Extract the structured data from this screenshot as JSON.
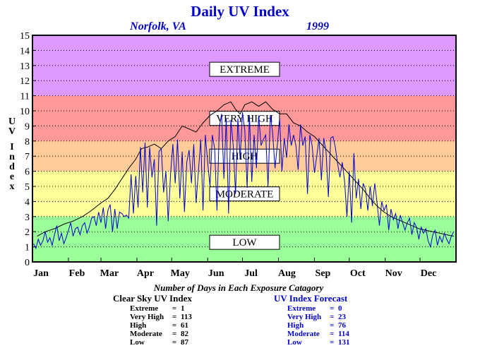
{
  "chart_data": {
    "type": "line",
    "title": "Daily UV Index",
    "location": "Norfolk, VA",
    "year": "1999",
    "ylabel": "UV Index",
    "ylim": [
      0,
      15
    ],
    "xlim": [
      1,
      366
    ],
    "y_ticks": [
      "0",
      "1",
      "2",
      "3",
      "4",
      "5",
      "6",
      "7",
      "8",
      "9",
      "10",
      "11",
      "12",
      "13",
      "14",
      "15"
    ],
    "x_ticks": [
      {
        "label": "Jan",
        "day": 1
      },
      {
        "label": "Feb",
        "day": 32
      },
      {
        "label": "Mar",
        "day": 60
      },
      {
        "label": "Apr",
        "day": 91
      },
      {
        "label": "May",
        "day": 121
      },
      {
        "label": "Jun",
        "day": 152
      },
      {
        "label": "Jul",
        "day": 182
      },
      {
        "label": "Aug",
        "day": 213
      },
      {
        "label": "Sep",
        "day": 244
      },
      {
        "label": "Oct",
        "day": 274
      },
      {
        "label": "Nov",
        "day": 305
      },
      {
        "label": "Dec",
        "day": 335
      }
    ],
    "grid": true,
    "bands": [
      {
        "label": "LOW",
        "from": 0,
        "to": 3,
        "color": "#99ff99"
      },
      {
        "label": "MODERATE",
        "from": 3,
        "to": 6,
        "color": "#ffff99"
      },
      {
        "label": "HIGH",
        "from": 6,
        "to": 8,
        "color": "#ffcc99"
      },
      {
        "label": "VERY HIGH",
        "from": 8,
        "to": 11,
        "color": "#ff9999"
      },
      {
        "label": "EXTREME",
        "from": 11,
        "to": 15,
        "color": "#dd99ff"
      }
    ],
    "series": [
      {
        "name": "Clear Sky UV Index",
        "color": "#000000",
        "x": [
          5,
          12,
          20,
          28,
          36,
          44,
          50,
          55,
          60,
          66,
          72,
          78,
          84,
          90,
          95,
          100,
          106,
          112,
          118,
          124,
          130,
          136,
          142,
          148,
          154,
          160,
          166,
          172,
          176,
          180,
          184,
          190,
          196,
          202,
          208,
          214,
          220,
          226,
          232,
          238,
          244,
          250,
          256,
          262,
          268,
          274,
          280,
          286,
          292,
          298,
          304,
          310,
          316,
          322,
          328,
          334,
          340,
          346,
          352,
          358,
          364
        ],
        "y": [
          1.7,
          2.0,
          2.2,
          2.5,
          2.7,
          3.0,
          3.3,
          3.6,
          3.9,
          4.2,
          4.8,
          5.5,
          6.2,
          6.8,
          7.5,
          7.6,
          7.8,
          7.5,
          8.0,
          8.3,
          9.0,
          8.8,
          8.6,
          9.2,
          9.7,
          10.0,
          10.4,
          10.6,
          10.1,
          9.8,
          10.4,
          10.6,
          10.3,
          10.6,
          10.1,
          9.8,
          9.8,
          9.2,
          9.0,
          8.6,
          8.3,
          7.8,
          7.3,
          6.8,
          6.3,
          5.8,
          5.3,
          4.8,
          4.2,
          3.7,
          3.3,
          3.0,
          2.8,
          2.6,
          2.4,
          2.2,
          2.1,
          2.0,
          1.9,
          1.8,
          1.7
        ]
      },
      {
        "name": "UV Index Forecast",
        "color": "#0000cc",
        "x": [
          2,
          4,
          6,
          8,
          10,
          12,
          14,
          16,
          18,
          20,
          22,
          24,
          26,
          28,
          30,
          32,
          34,
          36,
          38,
          40,
          42,
          44,
          46,
          48,
          50,
          52,
          54,
          56,
          58,
          60,
          62,
          64,
          66,
          68,
          70,
          72,
          74,
          76,
          78,
          80,
          82,
          84,
          86,
          88,
          90,
          92,
          94,
          96,
          98,
          100,
          102,
          104,
          106,
          108,
          110,
          112,
          114,
          116,
          118,
          120,
          122,
          124,
          126,
          128,
          130,
          132,
          134,
          136,
          138,
          140,
          142,
          144,
          146,
          148,
          150,
          152,
          154,
          156,
          158,
          160,
          162,
          164,
          166,
          168,
          170,
          172,
          174,
          176,
          178,
          180,
          182,
          184,
          186,
          188,
          190,
          192,
          194,
          196,
          198,
          200,
          202,
          204,
          206,
          208,
          210,
          212,
          214,
          216,
          218,
          220,
          222,
          224,
          226,
          228,
          230,
          232,
          234,
          236,
          238,
          240,
          242,
          244,
          246,
          248,
          250,
          252,
          254,
          256,
          258,
          260,
          262,
          264,
          266,
          268,
          270,
          272,
          274,
          276,
          278,
          280,
          282,
          284,
          286,
          288,
          290,
          292,
          294,
          296,
          298,
          300,
          302,
          304,
          306,
          308,
          310,
          312,
          314,
          316,
          318,
          320,
          322,
          324,
          326,
          328,
          330,
          332,
          334,
          336,
          338,
          340,
          342,
          344,
          346,
          348,
          350,
          352,
          354,
          356,
          358,
          360,
          362,
          364
        ],
        "y": [
          1.2,
          0.9,
          1.5,
          1.1,
          1.4,
          2.0,
          1.3,
          1.6,
          1.1,
          1.8,
          2.4,
          1.4,
          1.9,
          1.2,
          1.6,
          2.1,
          2.6,
          1.7,
          2.2,
          2.3,
          1.8,
          2.4,
          2.6,
          1.9,
          2.3,
          2.9,
          3.0,
          2.4,
          3.3,
          2.6,
          3.6,
          2.2,
          3.4,
          3.8,
          2.0,
          3.5,
          2.2,
          3.3,
          3.2,
          3.0,
          3.1,
          2.9,
          5.8,
          3.2,
          5.7,
          3.6,
          7.6,
          4.6,
          7.9,
          3.6,
          7.6,
          5.6,
          6.8,
          2.4,
          7.3,
          7.5,
          4.6,
          6.0,
          2.7,
          5.8,
          7.8,
          5.2,
          8.1,
          4.2,
          7.3,
          3.3,
          6.6,
          7.4,
          5.2,
          7.8,
          3.9,
          6.0,
          8.1,
          3.4,
          8.4,
          6.6,
          5.0,
          8.4,
          7.5,
          3.4,
          8.9,
          9.8,
          5.5,
          9.5,
          3.2,
          9.4,
          7.7,
          4.5,
          9.5,
          6.8,
          9.9,
          8.7,
          4.9,
          9.7,
          5.3,
          8.4,
          6.2,
          9.7,
          7.7,
          8.1,
          8.4,
          5.0,
          9.7,
          8.5,
          6.2,
          7.7,
          9.5,
          6.0,
          8.2,
          6.9,
          9.1,
          7.7,
          8.4,
          7.7,
          6.1,
          9.1,
          7.7,
          8.3,
          4.5,
          8.4,
          7.7,
          5.9,
          7.0,
          8.2,
          5.4,
          8.2,
          7.3,
          4.3,
          8.2,
          8.3,
          7.6,
          6.5,
          5.6,
          6.6,
          5.3,
          3.0,
          6.0,
          2.6,
          7.2,
          4.2,
          5.5,
          3.5,
          5.2,
          4.8,
          3.4,
          5.0,
          3.7,
          5.2,
          3.9,
          2.4,
          4.0,
          3.4,
          3.8,
          2.1,
          3.5,
          2.8,
          3.2,
          2.2,
          3.1,
          2.6,
          2.1,
          2.6,
          2.9,
          1.8,
          2.6,
          2.3,
          1.5,
          2.3,
          1.9,
          2.2,
          1.4,
          1.0,
          1.8,
          2.1,
          1.1,
          1.7,
          1.3,
          1.9,
          1.5,
          1.2,
          1.7,
          2.0
        ]
      }
    ]
  },
  "summary_title": "Number of Days in Each Exposure Catagory",
  "clear_sky": {
    "title": "Clear Sky UV Index",
    "rows": [
      {
        "label": "Extreme",
        "value": "1"
      },
      {
        "label": "Very High",
        "value": "113"
      },
      {
        "label": "High",
        "value": "61"
      },
      {
        "label": "Moderate",
        "value": "82"
      },
      {
        "label": "Low",
        "value": "87"
      }
    ]
  },
  "forecast": {
    "title": "UV Index Forecast",
    "rows": [
      {
        "label": "Extreme",
        "value": "0"
      },
      {
        "label": "Very High",
        "value": "23"
      },
      {
        "label": "High",
        "value": "76"
      },
      {
        "label": "Moderate",
        "value": "114"
      },
      {
        "label": "Low",
        "value": "131"
      }
    ]
  }
}
